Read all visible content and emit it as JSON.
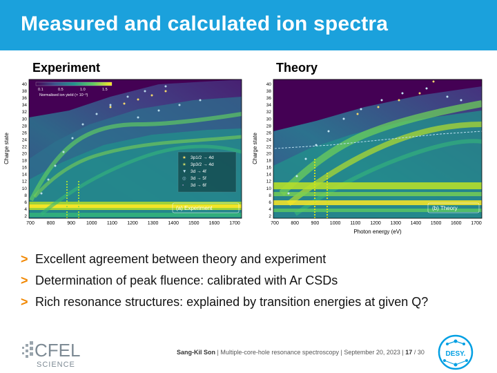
{
  "slide": {
    "title": "Measured and calculated ion spectra",
    "left_title": "Experiment",
    "right_title": "Theory"
  },
  "left_plot": {
    "ylabel": "Charge state",
    "yticks": [
      "2",
      "4",
      "6",
      "8",
      "10",
      "12",
      "14",
      "16",
      "18",
      "20",
      "22",
      "24",
      "26",
      "28",
      "30",
      "32",
      "34",
      "36",
      "38",
      "40"
    ],
    "xticks": [
      "700",
      "800",
      "900",
      "1000",
      "1100",
      "1200",
      "1300",
      "1400",
      "1500",
      "1600",
      "1700"
    ],
    "colorbar_ticks": [
      "0.1",
      "0.5",
      "1.0",
      "1.5"
    ],
    "colorbar_label": "Normalised ion yield (× 10⁻³)",
    "legend": [
      "3p1/2 → 4d",
      "3p3/2 → 4d",
      "3d → 4f",
      "3d → 5f",
      "3d → 6f"
    ],
    "panel_label": "(a) Experiment"
  },
  "right_plot": {
    "ylabel": "Charge state",
    "xlabel": "Photon energy (eV)",
    "yticks": [
      "2",
      "4",
      "6",
      "8",
      "10",
      "12",
      "14",
      "16",
      "18",
      "20",
      "22",
      "24",
      "26",
      "28",
      "30",
      "32",
      "34",
      "36",
      "38",
      "40"
    ],
    "xticks": [
      "700",
      "800",
      "900",
      "1000",
      "1100",
      "1200",
      "1300",
      "1400",
      "1500",
      "1600",
      "1700"
    ],
    "panel_label": "(b) Theory"
  },
  "bullets": [
    {
      "mark": ">",
      "text": "Excellent agreement between theory and experiment"
    },
    {
      "mark": ">",
      "text": "Determination of peak fluence: calibrated with Ar CSDs"
    },
    {
      "mark": ">",
      "text": "Rich resonance structures: explained by transition energies at given Q?"
    }
  ],
  "footer": {
    "author": "Sang-Kil Son",
    "talk": "Multiple-core-hole resonance spectroscopy",
    "date": "September 20, 2023",
    "page": "17",
    "total": "/ 30",
    "sep": "|"
  },
  "logos": {
    "cfel_text": "CFEL",
    "cfel_sub": "SCIENCE",
    "desy_text": "DESY."
  },
  "colors": {
    "header": "#1ba1dc",
    "bullet_mark": "#f18700",
    "heat_low": "#440154",
    "heat_mid": "#21918c",
    "heat_high": "#fde725"
  }
}
